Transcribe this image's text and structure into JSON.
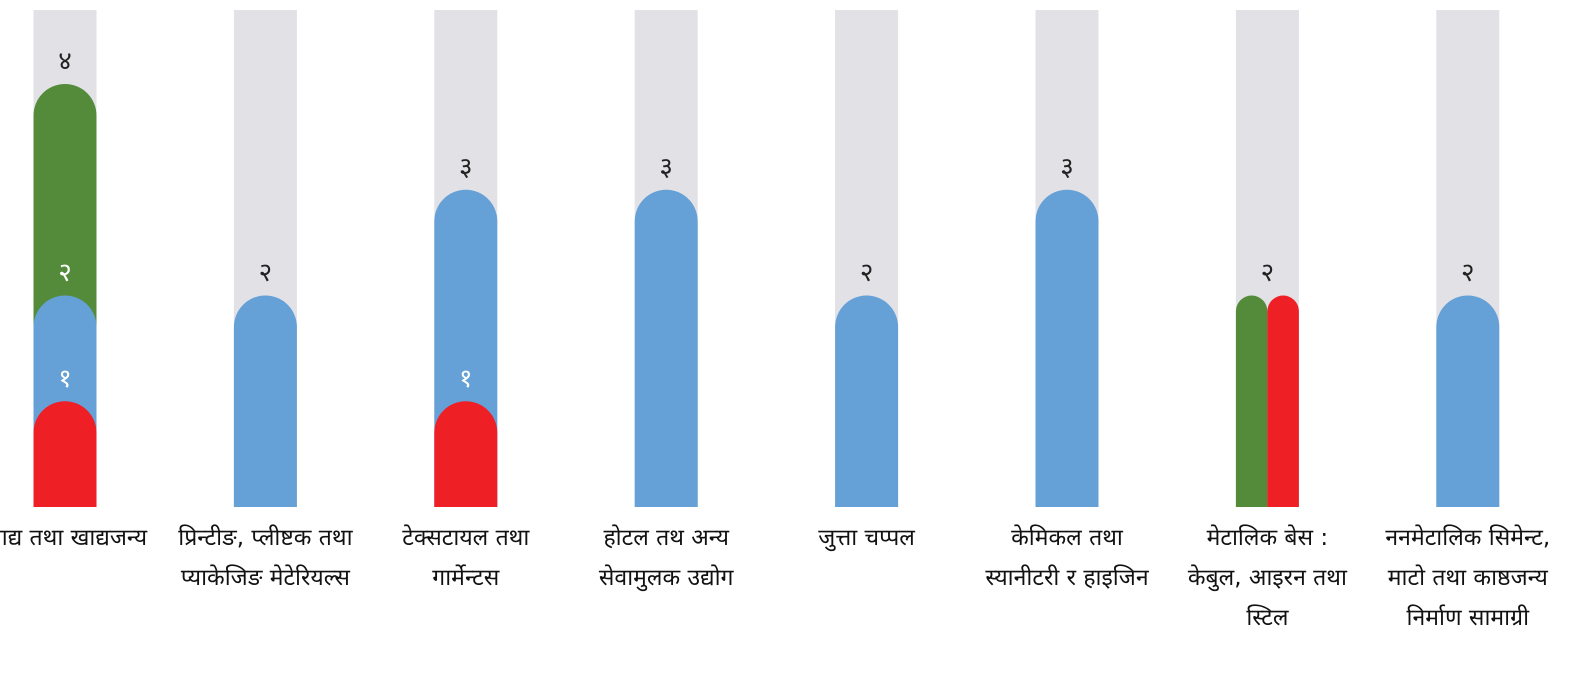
{
  "chart_data": {
    "type": "bar",
    "categories": [
      "खाद्य तथा खाद्यजन्य",
      "प्रिन्टीङ, प्लीष्टक तथा प्याकेजिङ मेटेरियल्स",
      "टेक्सटायल तथा गार्मेन्टस",
      "होटल तथ अन्य सेवामुलक उद्योग",
      "जुत्ता चप्पल",
      "केमिकल तथा स्यानीटरी र हाइजिन",
      "मेटालिक बेस : केबुल, आइरन तथा स्टिल",
      "ननमेटालिक सिमेन्ट, माटो तथा काष्ठजन्य निर्माण सामाग्री"
    ],
    "series": [
      {
        "color": "#548b3a",
        "values": [
          4,
          null,
          null,
          null,
          null,
          null,
          2,
          null
        ],
        "value_labels": [
          "४",
          null,
          null,
          null,
          null,
          null,
          null,
          null
        ]
      },
      {
        "color": "#65a0d6",
        "values": [
          2,
          2,
          3,
          3,
          2,
          3,
          null,
          2
        ],
        "value_labels": [
          "२",
          "२",
          "३",
          "३",
          "२",
          "३",
          null,
          "२"
        ]
      },
      {
        "color": "#ee1f25",
        "values": [
          1,
          null,
          1,
          null,
          null,
          null,
          2,
          null
        ],
        "value_labels": [
          "१",
          null,
          "१",
          null,
          null,
          null,
          "२",
          null
        ]
      }
    ],
    "track_color": "#e2e1e6",
    "ylim": [
      0,
      4.7
    ]
  }
}
